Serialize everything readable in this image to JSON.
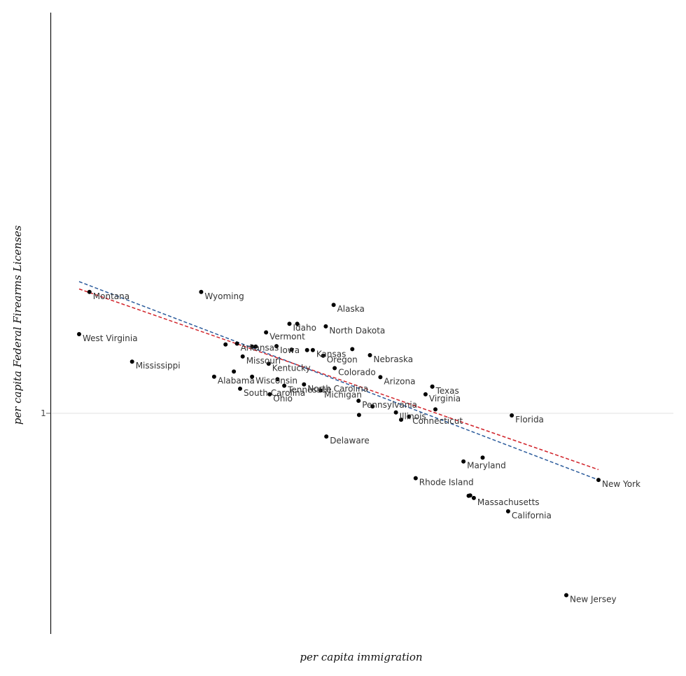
{
  "chart_data": {
    "type": "scatter",
    "xlabel": "per capita immigration",
    "ylabel": "per capita Federal Firearms Licenses",
    "y_ticks": [
      {
        "value": 1,
        "label": "1"
      }
    ],
    "xlim": [
      0,
      100
    ],
    "ylim": [
      0,
      100
    ],
    "grid": "horizontal reference line at y tick only",
    "points": [
      {
        "name": "Montana",
        "x": 2.0,
        "y": 73.0
      },
      {
        "name": "Wyoming",
        "x": 23.5,
        "y": 73.0
      },
      {
        "name": "Alaska",
        "x": 49.0,
        "y": 70.0
      },
      {
        "name": "Idaho",
        "x": 40.5,
        "y": 65.6
      },
      {
        "name": "North Dakota",
        "x": 47.5,
        "y": 65.0
      },
      {
        "name": "Vermont",
        "x": 36.0,
        "y": 63.6
      },
      {
        "name": "West Virginia",
        "x": 0.0,
        "y": 63.2
      },
      {
        "name": "Arkansas",
        "x": 30.4,
        "y": 61.0
      },
      {
        "name": "Iowa",
        "x": 38.0,
        "y": 60.4
      },
      {
        "name": "Kansas",
        "x": 45.0,
        "y": 59.5
      },
      {
        "name": "Missouri",
        "x": 31.5,
        "y": 58.0
      },
      {
        "name": "Oregon",
        "x": 47.0,
        "y": 58.2
      },
      {
        "name": "Nebraska",
        "x": 56.0,
        "y": 58.3
      },
      {
        "name": "Kentucky",
        "x": 36.5,
        "y": 56.3
      },
      {
        "name": "Colorado",
        "x": 49.2,
        "y": 55.3
      },
      {
        "name": "Mississippi",
        "x": 10.2,
        "y": 56.8
      },
      {
        "name": "Wisconsin",
        "x": 33.3,
        "y": 53.3
      },
      {
        "name": "Arizona",
        "x": 58.0,
        "y": 53.2
      },
      {
        "name": "Alabama",
        "x": 26.0,
        "y": 53.3
      },
      {
        "name": "North Carolina",
        "x": 43.3,
        "y": 51.5
      },
      {
        "name": "Tennessee",
        "x": 39.5,
        "y": 51.2
      },
      {
        "name": "Texas",
        "x": 68.0,
        "y": 51.0
      },
      {
        "name": "South Carolina",
        "x": 31.0,
        "y": 50.5
      },
      {
        "name": "Michigan",
        "x": 46.5,
        "y": 50.1
      },
      {
        "name": "Ohio",
        "x": 36.7,
        "y": 49.2
      },
      {
        "name": "Virginia",
        "x": 66.7,
        "y": 49.2
      },
      {
        "name": "Pennsylvania",
        "x": 53.8,
        "y": 47.7
      },
      {
        "name": "Illinois",
        "x": 61.0,
        "y": 45.0
      },
      {
        "name": "Florida",
        "x": 83.3,
        "y": 44.3
      },
      {
        "name": "Connecticut",
        "x": 63.5,
        "y": 44.0
      },
      {
        "name": "Delaware",
        "x": 47.6,
        "y": 39.4
      },
      {
        "name": "Maryland",
        "x": 74.0,
        "y": 33.6
      },
      {
        "name": "Rhode Island",
        "x": 64.8,
        "y": 29.7
      },
      {
        "name": "New York",
        "x": 100.0,
        "y": 29.3
      },
      {
        "name": "Massachusetts",
        "x": 76.0,
        "y": 25.1
      },
      {
        "name": "California",
        "x": 82.6,
        "y": 22.0
      },
      {
        "name": "New Jersey",
        "x": 93.8,
        "y": 2.5
      }
    ],
    "unlabeled_points": [
      {
        "x": 34.0,
        "y": 60.3
      },
      {
        "x": 33.3,
        "y": 60.3
      },
      {
        "x": 28.2,
        "y": 60.8
      },
      {
        "x": 29.8,
        "y": 54.5
      },
      {
        "x": 38.2,
        "y": 52.7
      },
      {
        "x": 40.9,
        "y": 59.6
      },
      {
        "x": 43.9,
        "y": 59.5
      },
      {
        "x": 56.5,
        "y": 46.4
      },
      {
        "x": 68.0,
        "y": 51.0
      },
      {
        "x": 77.7,
        "y": 34.5
      },
      {
        "x": 75.3,
        "y": 25.7
      },
      {
        "x": 75.0,
        "y": 25.6
      },
      {
        "x": 52.6,
        "y": 59.7
      },
      {
        "x": 42.0,
        "y": 65.6
      },
      {
        "x": 68.6,
        "y": 45.7
      },
      {
        "x": 62.0,
        "y": 43.3
      },
      {
        "x": 53.9,
        "y": 44.4
      }
    ],
    "trend_lines": [
      {
        "color": "#2c5c9c",
        "style": "dashed",
        "points": [
          {
            "x": 0.0,
            "y": 75.4
          },
          {
            "x": 100.0,
            "y": 29.3
          }
        ]
      },
      {
        "color": "#d1232a",
        "style": "dashed",
        "points": [
          {
            "x": 0.0,
            "y": 73.7
          },
          {
            "x": 100.0,
            "y": 31.7
          }
        ]
      }
    ]
  }
}
